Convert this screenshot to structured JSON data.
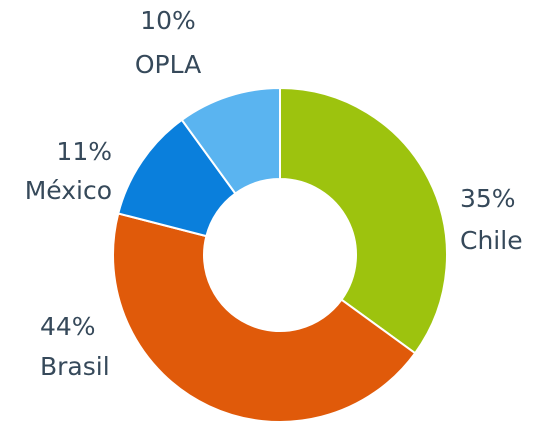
{
  "chart_data": {
    "type": "donut",
    "categories": [
      "Chile",
      "Brasil",
      "México",
      "OPLA"
    ],
    "values": [
      35,
      44,
      11,
      10
    ],
    "value_labels": [
      "35%",
      "44%",
      "11%",
      "10%"
    ],
    "colors": [
      "#9dc30e",
      "#e05a0a",
      "#0a7fdc",
      "#5ab4f0"
    ]
  }
}
